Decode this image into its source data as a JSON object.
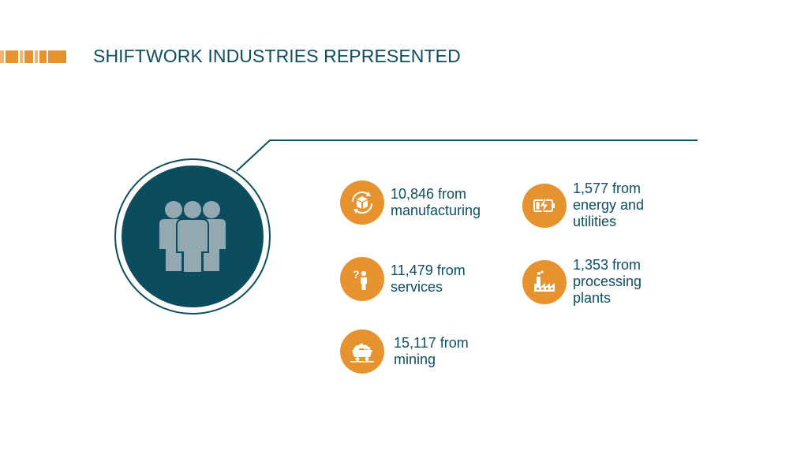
{
  "header": {
    "title": "SHIFTWORK INDUSTRIES REPRESENTED"
  },
  "colors": {
    "title": "#0e4e60",
    "accent_orange": "#e6932f",
    "dark_teal": "#0b4d5e",
    "people_gray": "#93a9b2"
  },
  "center_icon": "people-group-icon",
  "stats": [
    {
      "icon": "recycle-box-icon",
      "lines": [
        "10,846 from",
        "manufacturing"
      ]
    },
    {
      "icon": "battery-charging-icon",
      "lines": [
        "1,577 from",
        "energy and",
        "utilities"
      ]
    },
    {
      "icon": "question-person-icon",
      "lines": [
        "11,479 from",
        "services"
      ]
    },
    {
      "icon": "factory-icon",
      "lines": [
        "1,353 from",
        "processing",
        "plants"
      ]
    },
    {
      "icon": "mine-cart-icon",
      "lines": [
        "15,117 from",
        "mining"
      ]
    }
  ]
}
